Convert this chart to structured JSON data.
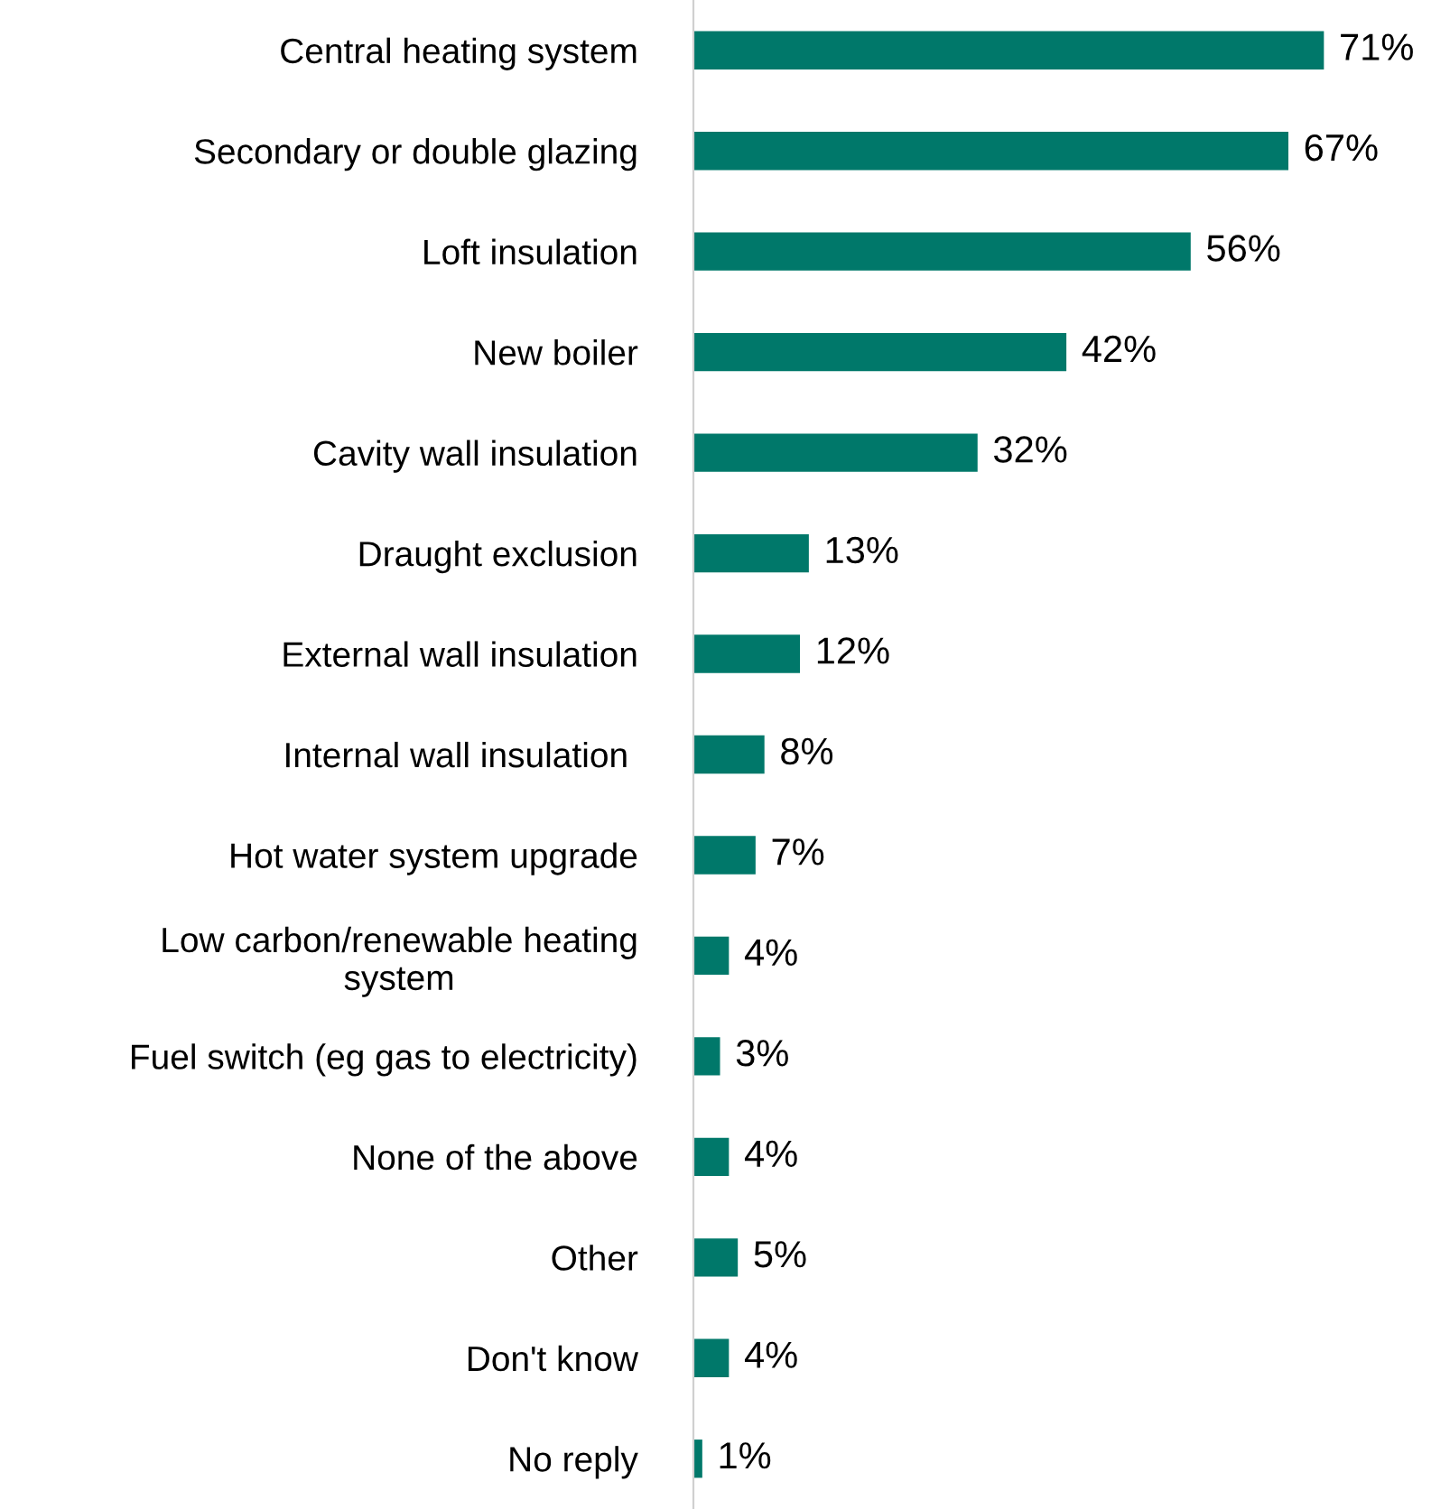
{
  "chart_data": {
    "type": "bar",
    "orientation": "horizontal",
    "categories": [
      "Central heating system",
      "Secondary or double glazing",
      "Loft insulation",
      "New boiler",
      "Cavity wall insulation",
      "Draught exclusion",
      "External wall insulation",
      "Internal wall insulation ",
      "Hot water system upgrade",
      "Low carbon/renewable heating\nsystem",
      "Fuel switch (eg gas to electricity)",
      "None of the above",
      "Other",
      "Don't know",
      "No reply"
    ],
    "values": [
      71,
      67,
      56,
      42,
      32,
      13,
      12,
      8,
      7,
      4,
      3,
      4,
      5,
      4,
      1
    ],
    "color": "#00786a",
    "data_labels": true,
    "value_labels": [
      "71%",
      "67%",
      "56%",
      "42%",
      "32%",
      "13%",
      "12%",
      "8%",
      "7%",
      "4%",
      "3%",
      "4%",
      "5%",
      "4%",
      "1%"
    ],
    "grid": false,
    "legend": false
  }
}
